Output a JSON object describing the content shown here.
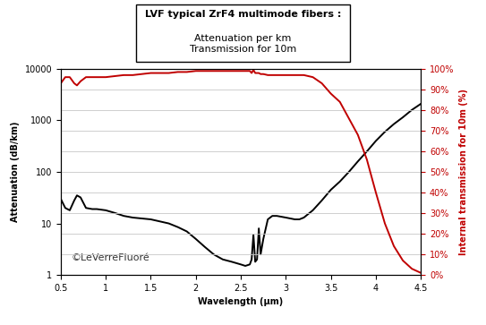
{
  "chart_data": {
    "type": "line",
    "title": "LVF typical ZrF4 multimode fibers :",
    "subtitle": "Attenuation per km\nTransmission for 10m",
    "x_label": "Wavelength (µm)",
    "y_label": "Attenuation (dB/km)",
    "y2_label": "Internal transmission for 10m (%)",
    "annotations": [
      "©LeVerreFluoré"
    ],
    "log": "y",
    "grid": true,
    "x": [
      0.5,
      0.55,
      0.6,
      0.65,
      0.68,
      0.72,
      0.78,
      0.85,
      0.9,
      1.0,
      1.1,
      1.2,
      1.3,
      1.5,
      1.7,
      1.8,
      1.9,
      2.0,
      2.1,
      2.2,
      2.3,
      2.4,
      2.5,
      2.55,
      2.6,
      2.62,
      2.64,
      2.66,
      2.68,
      2.7,
      2.72,
      2.75,
      2.8,
      2.85,
      2.9,
      3.0,
      3.1,
      3.15,
      3.2,
      3.3,
      3.4,
      3.5,
      3.6,
      3.7,
      3.8,
      3.9,
      4.0,
      4.1,
      4.2,
      4.3,
      4.4,
      4.5
    ],
    "series": [
      {
        "color": "#000000",
        "values": [
          30,
          20,
          18,
          28,
          35,
          32,
          20,
          19,
          19,
          18,
          16,
          14,
          13,
          12,
          10,
          8.5,
          7,
          5,
          3.5,
          2.5,
          2.0,
          1.8,
          1.6,
          1.5,
          1.6,
          2,
          6,
          1.8,
          2,
          8,
          2.5,
          5,
          12,
          14,
          14,
          13,
          12,
          12,
          13,
          18,
          28,
          45,
          65,
          100,
          160,
          250,
          400,
          600,
          850,
          1150,
          1600,
          2100
        ]
      },
      {
        "color": "#c00000",
        "axis": "y2",
        "values": [
          93,
          96,
          96,
          93,
          92,
          94,
          96,
          96,
          96,
          96,
          96.5,
          97,
          97,
          98,
          98,
          98.5,
          98.5,
          99,
          99,
          99,
          99,
          99,
          99,
          99,
          99,
          98,
          99.5,
          98,
          98,
          98,
          97.5,
          97.5,
          97,
          97,
          97,
          97,
          97,
          97,
          97,
          96,
          93,
          88,
          84,
          76,
          68,
          56,
          40,
          25,
          14,
          7,
          3,
          1
        ]
      }
    ],
    "xlim": [
      0.5,
      4.5
    ],
    "xticks": [
      0.5,
      1,
      1.5,
      2,
      2.5,
      3,
      3.5,
      4,
      4.5
    ],
    "ylim": [
      1,
      10000
    ],
    "yticks": [
      1,
      10,
      100,
      1000,
      10000
    ],
    "y2lim": [
      0,
      100
    ],
    "y2ticks": [
      {
        "value": 0,
        "label": "0%"
      },
      {
        "value": 10,
        "label": "10%"
      },
      {
        "value": 20,
        "label": "20%"
      },
      {
        "value": 30,
        "label": "30%"
      },
      {
        "value": 40,
        "label": "40%"
      },
      {
        "value": 50,
        "label": "50%"
      },
      {
        "value": 60,
        "label": "60%"
      },
      {
        "value": 70,
        "label": "70%"
      },
      {
        "value": 80,
        "label": "80%"
      },
      {
        "value": 90,
        "label": "90%"
      },
      {
        "value": 100,
        "label": "100%"
      }
    ]
  }
}
